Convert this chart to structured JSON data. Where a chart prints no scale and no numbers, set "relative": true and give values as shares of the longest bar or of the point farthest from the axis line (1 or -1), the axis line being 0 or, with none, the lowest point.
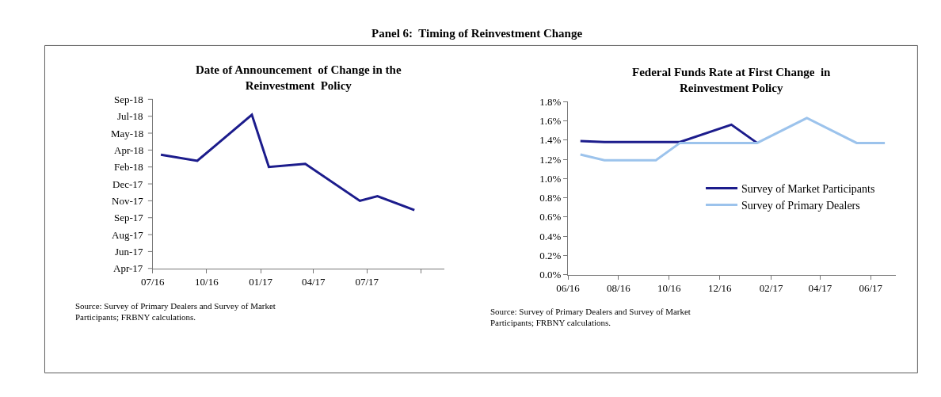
{
  "chart_data": [
    {
      "type": "other",
      "title": "Panel 6:  Timing of Reinvestment Change"
    },
    {
      "type": "line",
      "title": "Date of Announcement  of Change in the\nReinvestment  Policy",
      "marker": "none",
      "line_style": "solid",
      "legend": false,
      "series": [
        {
          "color": "#1c1c8c",
          "x": [
            "2016-07-15",
            "2016-09-15",
            "2016-10-16",
            "2016-12-17",
            "2017-01-15",
            "2017-03-18",
            "2017-06-19",
            "2017-07-19",
            "2017-09-20"
          ],
          "values": [
            0.74,
            0.7,
            0.8,
            1.0,
            0.66,
            0.68,
            0.44,
            0.47,
            0.38
          ]
        }
      ],
      "relative": true,
      "xlim": [
        "2016-07-01",
        "2017-11-10"
      ],
      "xticks": [
        {
          "value": "2016-07-01",
          "label": "07/16"
        },
        {
          "value": "2016-10-01",
          "label": "10/16"
        },
        {
          "value": "2017-01-01",
          "label": "01/17"
        },
        {
          "value": "2017-04-01",
          "label": "04/17"
        },
        {
          "value": "2017-07-01",
          "label": "07/17"
        },
        {
          "value": "2017-10-01",
          "label": null
        }
      ],
      "annotations": [
        "Apr-17",
        "Jun-17",
        "Aug-17",
        "Sep-17",
        "Nov-17",
        "Dec-17",
        "Feb-18",
        "Apr-18",
        "May-18",
        "Jul-18",
        "Sep-18",
        "Source: Survey of Primary Dealers and Survey of Market\nParticipants; FRBNY calculations."
      ]
    },
    {
      "type": "line",
      "title": "Federal Funds Rate at First Change  in\nReinvestment Policy",
      "marker": "none",
      "line_style": "solid",
      "legend": "right",
      "series": [
        {
          "name": "Survey of Market Participants",
          "color": "#1c1c8c",
          "x": [
            "2016-06-16",
            "2016-07-15",
            "2016-10-14",
            "2016-12-15",
            "2017-01-15"
          ],
          "values": [
            1.39,
            1.38,
            1.38,
            1.56,
            1.37
          ]
        },
        {
          "name": "Survey of Primary Dealers",
          "color": "#9cc3ec",
          "x": [
            "2016-06-16",
            "2016-07-15",
            "2016-09-15",
            "2016-10-14",
            "2017-01-15",
            "2017-03-16",
            "2017-05-15",
            "2017-06-18"
          ],
          "values": [
            1.25,
            1.19,
            1.19,
            1.37,
            1.37,
            1.63,
            1.37,
            1.37
          ]
        }
      ],
      "xlim": [
        "2016-06-01",
        "2017-07-01"
      ],
      "xticks": [
        {
          "value": "2016-06-01",
          "label": "06/16"
        },
        {
          "value": "2016-08-01",
          "label": "08/16"
        },
        {
          "value": "2016-10-01",
          "label": "10/16"
        },
        {
          "value": "2016-12-01",
          "label": "12/16"
        },
        {
          "value": "2017-02-01",
          "label": "02/17"
        },
        {
          "value": "2017-04-01",
          "label": "04/17"
        },
        {
          "value": "2017-06-01",
          "label": "06/17"
        }
      ],
      "ylim": [
        0,
        1.8
      ],
      "yticks": [
        {
          "value": 0,
          "label": "0.0%"
        },
        {
          "value": 0.2,
          "label": "0.2%"
        },
        {
          "value": 0.4,
          "label": "0.4%"
        },
        {
          "value": 0.6,
          "label": "0.6%"
        },
        {
          "value": 0.8,
          "label": "0.8%"
        },
        {
          "value": 1.0,
          "label": "1.0%"
        },
        {
          "value": 1.2,
          "label": "1.2%"
        },
        {
          "value": 1.4,
          "label": "1.4%"
        },
        {
          "value": 1.6,
          "label": "1.6%"
        },
        {
          "value": 1.8,
          "label": "1.8%"
        }
      ],
      "annotations": [
        "Source: Survey of Primary Dealers and Survey of Market\nParticipants; FRBNY calculations."
      ]
    }
  ]
}
